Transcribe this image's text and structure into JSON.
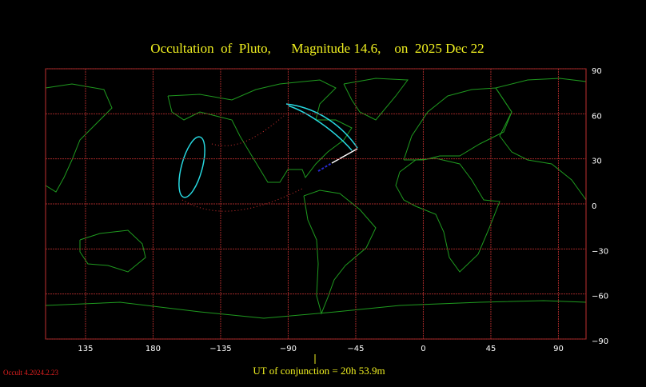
{
  "map": {
    "title": "Occultation  of  Pluto,      Magnitude 14.6,    on  2025 Dec 22",
    "xlim": [
      108.4,
      468.4
    ],
    "ylim": [
      -90,
      90
    ],
    "xticks": [
      135,
      180,
      {
        "value": 225,
        "label": "−135"
      },
      {
        "value": 270,
        "label": "−90"
      },
      {
        "value": 315,
        "label": "−45"
      },
      {
        "value": 360,
        "label": "0"
      },
      {
        "value": 405,
        "label": "45"
      },
      {
        "value": 450,
        "label": "90"
      }
    ],
    "yticks": [
      90,
      60,
      30,
      0,
      {
        "value": -30,
        "label": "−30"
      },
      {
        "value": -60,
        "label": "−60"
      },
      {
        "value": -90,
        "label": "−90"
      }
    ],
    "conjunction": "UT of conjunction = 20h 53.9m",
    "version": "Occult 4.2024.2.23"
  }
}
